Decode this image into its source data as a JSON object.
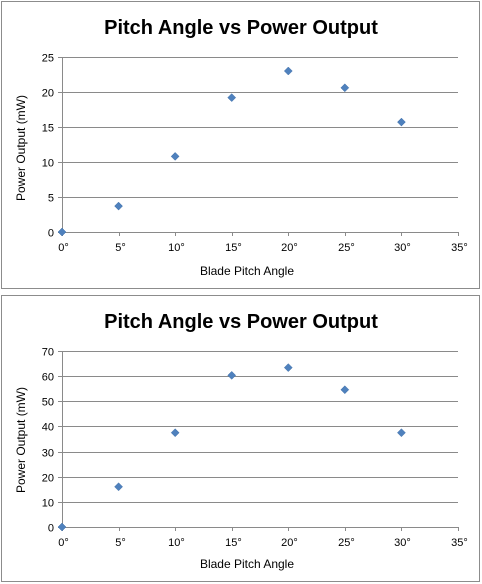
{
  "chart_data": [
    {
      "type": "scatter",
      "title": "Pitch Angle vs Power Output",
      "xlabel": "Blade Pitch Angle",
      "ylabel": "Power Output (mW)",
      "xlim": [
        0,
        35
      ],
      "ylim": [
        0,
        25
      ],
      "x_ticks": [
        0,
        5,
        10,
        15,
        20,
        25,
        30,
        35
      ],
      "x_tick_labels": [
        "0°",
        "5°",
        "10°",
        "15°",
        "20°",
        "25°",
        "30°",
        "35°"
      ],
      "y_ticks": [
        0,
        5,
        10,
        15,
        20,
        25
      ],
      "y_tick_labels": [
        "0",
        "5",
        "10",
        "15",
        "20",
        "25"
      ],
      "grid": true,
      "legend": false,
      "marker": "diamond",
      "color": "#4f81bd",
      "x": [
        0,
        5,
        10,
        15,
        20,
        25,
        30
      ],
      "y": [
        0,
        3.7,
        10.8,
        19.2,
        23,
        20.6,
        15.7
      ]
    },
    {
      "type": "scatter",
      "title": "Pitch Angle vs Power Output",
      "xlabel": "Blade Pitch Angle",
      "ylabel": "Power Output (mW)",
      "xlim": [
        0,
        35
      ],
      "ylim": [
        0,
        70
      ],
      "x_ticks": [
        0,
        5,
        10,
        15,
        20,
        25,
        30,
        35
      ],
      "x_tick_labels": [
        "0°",
        "5°",
        "10°",
        "15°",
        "20°",
        "25°",
        "30°",
        "35°"
      ],
      "y_ticks": [
        0,
        10,
        20,
        30,
        40,
        50,
        60,
        70
      ],
      "y_tick_labels": [
        "0",
        "10",
        "20",
        "30",
        "40",
        "50",
        "60",
        "70"
      ],
      "grid": true,
      "legend": false,
      "marker": "diamond",
      "color": "#4f81bd",
      "x": [
        0,
        5,
        10,
        15,
        20,
        25,
        30
      ],
      "y": [
        0,
        16,
        37.5,
        60.3,
        63.4,
        54.6,
        37.5
      ]
    }
  ]
}
